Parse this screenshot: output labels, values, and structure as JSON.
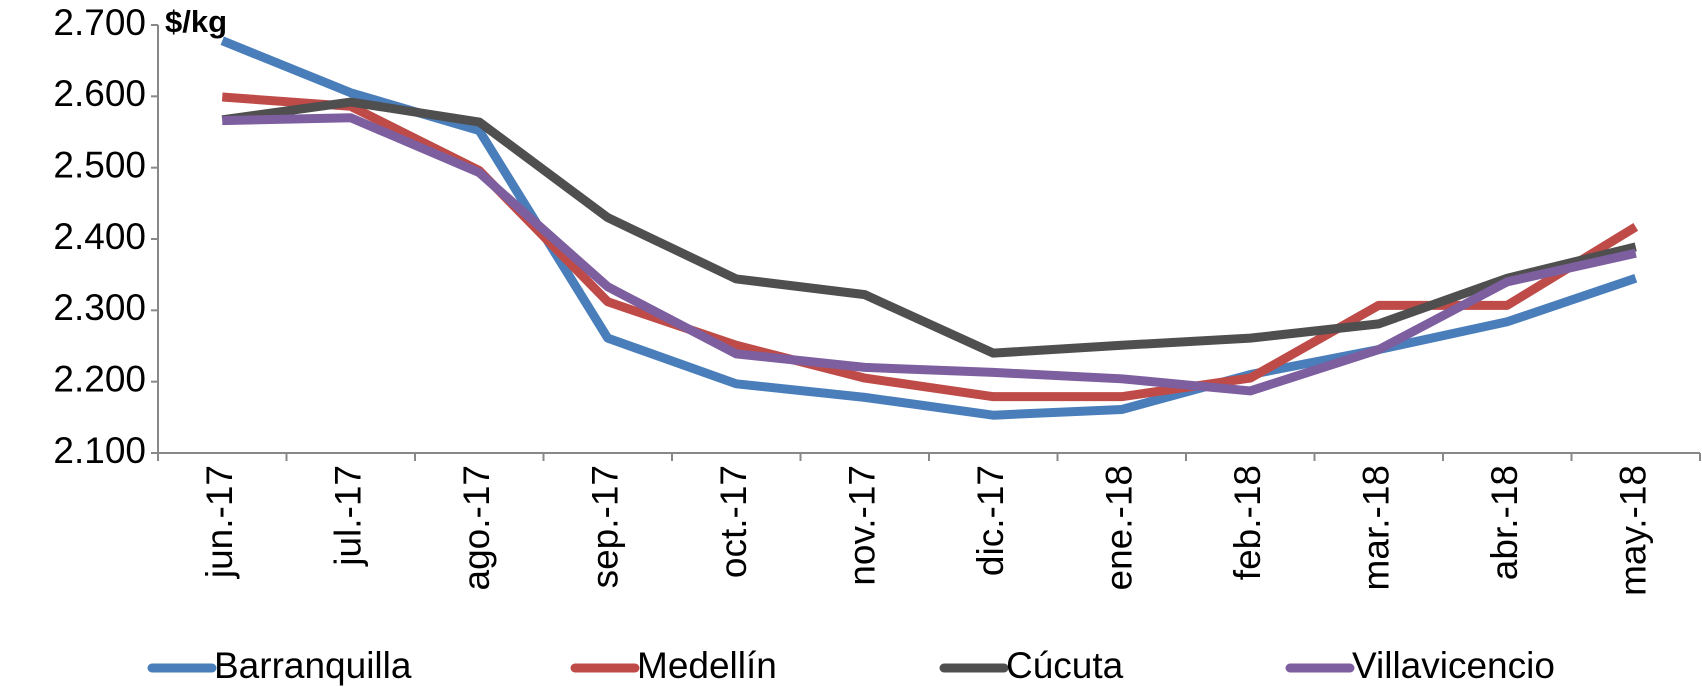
{
  "chart_data": {
    "type": "line",
    "y_label": "$/kg",
    "categories": [
      "jun.-17",
      "jul.-17",
      "ago.-17",
      "sep.-17",
      "oct.-17",
      "nov.-17",
      "dic.-17",
      "ene.-18",
      "feb.-18",
      "mar.-18",
      "abr.-18",
      "may.-18"
    ],
    "series": [
      {
        "name": "Barranquilla",
        "color": "#4a7ebb",
        "values": [
          2678,
          2605,
          2552,
          2261,
          2197,
          2178,
          2153,
          2161,
          2210,
          2245,
          2284,
          2345
        ]
      },
      {
        "name": "Medellín",
        "color": "#be4b48",
        "values": [
          2599,
          2586,
          2496,
          2312,
          2251,
          2205,
          2179,
          2179,
          2205,
          2307,
          2307,
          2417
        ]
      },
      {
        "name": "Cúcuta",
        "color": "#4f4f4f",
        "values": [
          2567,
          2592,
          2564,
          2430,
          2344,
          2322,
          2240,
          2251,
          2261,
          2281,
          2345,
          2389
        ]
      },
      {
        "name": "Villavicencio",
        "color": "#7d5fa0",
        "values": [
          2566,
          2570,
          2493,
          2333,
          2239,
          2220,
          2213,
          2204,
          2187,
          2245,
          2340,
          2380
        ]
      }
    ],
    "ylim": [
      2100,
      2700
    ],
    "yticks": [
      {
        "value": 2100,
        "label": "2.100"
      },
      {
        "value": 2200,
        "label": "2.200"
      },
      {
        "value": 2300,
        "label": "2.300"
      },
      {
        "value": 2400,
        "label": "2.400"
      },
      {
        "value": 2500,
        "label": "2.500"
      },
      {
        "value": 2600,
        "label": "2.600"
      },
      {
        "value": 2700,
        "label": "2.700"
      }
    ],
    "grid": false,
    "legend": "bottom"
  }
}
